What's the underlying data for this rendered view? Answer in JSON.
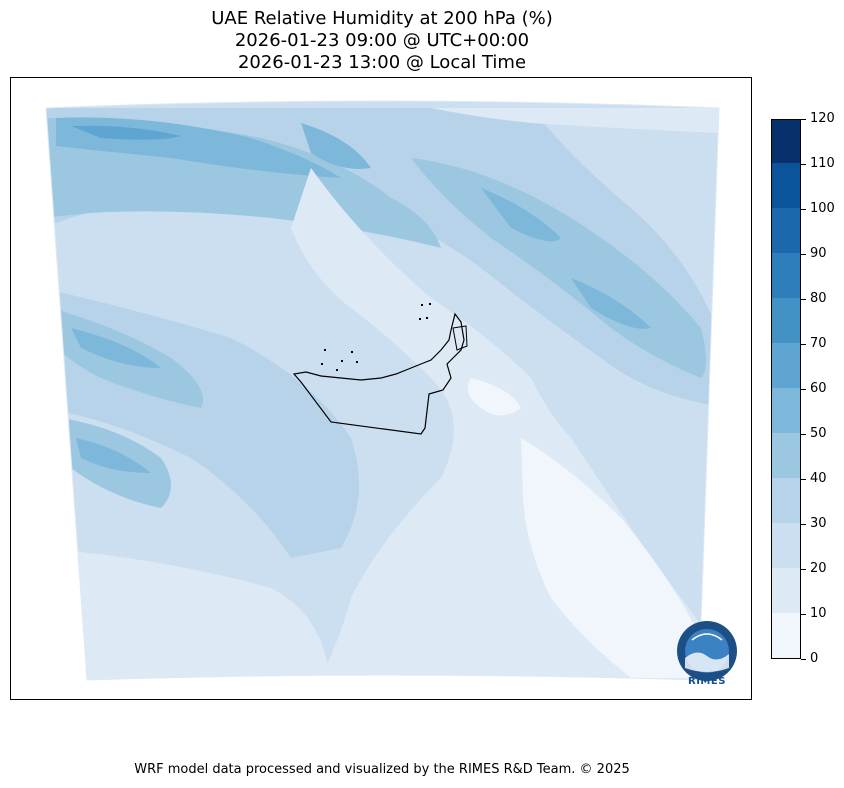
{
  "title": {
    "line1": "UAE Relative Humidity at 200 hPa (%)",
    "line2": "2026-01-23 09:00 @ UTC+00:00",
    "line3": "2026-01-23 13:00 @ Local Time"
  },
  "colorbar": {
    "min": 0,
    "max": 120,
    "step": 10,
    "labels": [
      "0",
      "10",
      "20",
      "30",
      "40",
      "50",
      "60",
      "70",
      "80",
      "90",
      "100",
      "110",
      "120"
    ],
    "colors": [
      "#f0f6fc",
      "#dee9f6",
      "#ccdff1",
      "#b6d3e9",
      "#9bc7e0",
      "#7db8db",
      "#5ea5d2",
      "#4392c6",
      "#2e7ebc",
      "#1b68ac",
      "#0b539b",
      "#08306b"
    ]
  },
  "map": {
    "region": "UAE",
    "variable": "Relative Humidity",
    "level": "200 hPa"
  },
  "logo": {
    "text": "RIMES"
  },
  "footer": "WRF model data processed and visualized by the RIMES R&D Team. © 2025"
}
